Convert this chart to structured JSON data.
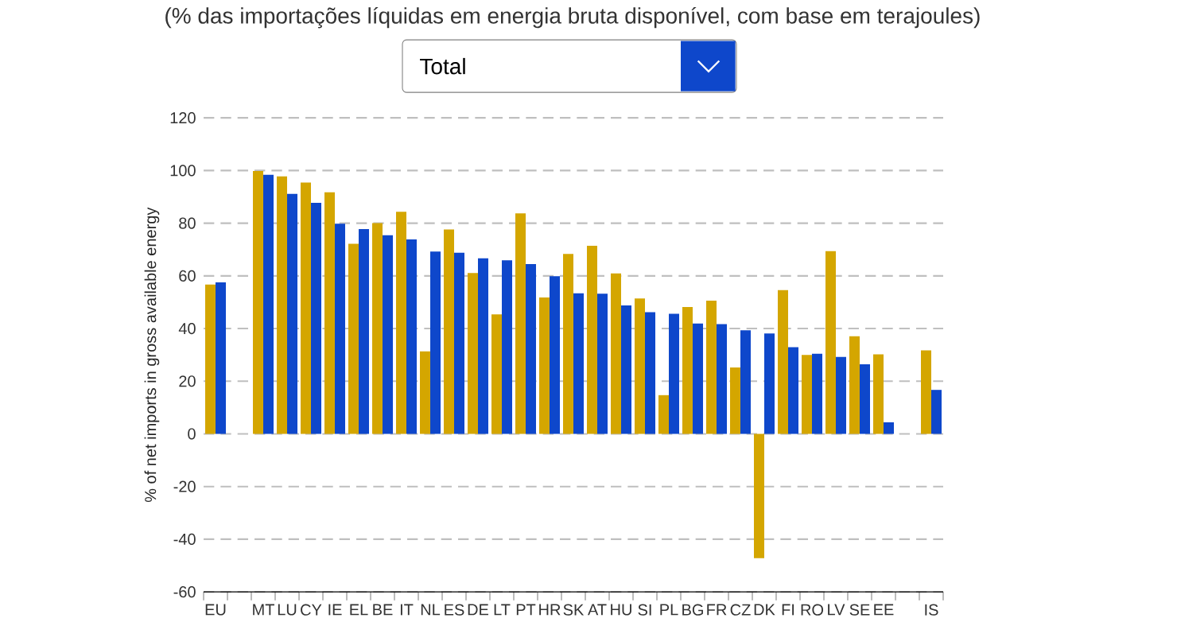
{
  "chart_data": {
    "type": "bar",
    "subtitle": "(% das importações líquidas em energia bruta disponível, com base em terajoules)",
    "annotations": [
      "Total"
    ],
    "ylabel": "% of net imports in gross available energy",
    "categories": [
      "EU",
      null,
      "MT",
      "LU",
      "CY",
      "IE",
      "EL",
      "BE",
      "IT",
      "NL",
      "ES",
      "DE",
      "LT",
      "PT",
      "HR",
      "SK",
      "AT",
      "HU",
      "SI",
      "PL",
      "BG",
      "FR",
      "CZ",
      "DK",
      "FI",
      "RO",
      "LV",
      "SE",
      "EE",
      null,
      "IS"
    ],
    "series": [
      {
        "color": "#d4a600",
        "values": [
          56.7,
          null,
          99.8,
          97.8,
          95.4,
          91.7,
          72.2,
          80.0,
          84.3,
          31.3,
          77.6,
          61.1,
          45.4,
          83.7,
          51.8,
          68.3,
          71.4,
          60.9,
          51.4,
          14.7,
          48.2,
          50.6,
          25.2,
          -47.2,
          54.6,
          30.0,
          69.4,
          37.1,
          30.2,
          null,
          31.7
        ]
      },
      {
        "color": "#0e47cb",
        "values": [
          57.5,
          null,
          98.4,
          91.1,
          87.7,
          79.8,
          77.8,
          75.4,
          73.8,
          69.2,
          68.8,
          66.7,
          65.9,
          64.5,
          59.9,
          53.4,
          53.2,
          48.8,
          46.2,
          45.6,
          41.9,
          41.7,
          39.3,
          38.1,
          32.9,
          30.4,
          29.2,
          26.4,
          4.4,
          null,
          16.7
        ]
      }
    ],
    "ylim": [
      -60,
      120
    ],
    "yticks": [
      -60,
      -40,
      -20,
      0,
      20,
      40,
      60,
      80,
      100,
      120
    ],
    "grid": "y"
  }
}
